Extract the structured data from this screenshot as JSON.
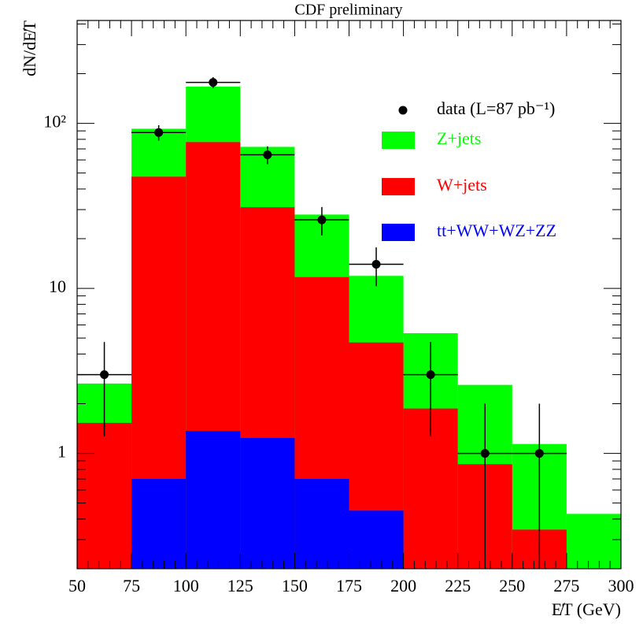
{
  "chart_data": {
    "type": "histogram",
    "title": "CDF preliminary",
    "xlabel": "E̸T (GeV)",
    "ylabel": "dN/dE̸T",
    "bins": [
      50,
      75,
      100,
      125,
      150,
      175,
      200,
      225,
      250,
      275,
      300
    ],
    "series": [
      {
        "name": "Z+jets",
        "color": "#00ff00",
        "values": [
          2.65,
          92.7,
          167,
          72,
          28,
          11.9,
          5.35,
          2.6,
          1.14,
          0.43
        ]
      },
      {
        "name": "W+jets",
        "color": "#ff0000",
        "values": [
          1.53,
          47.5,
          77,
          31,
          11.7,
          4.7,
          1.87,
          0.86,
          0.345,
          null
        ]
      },
      {
        "name": "tt+WW+WZ+ZZ",
        "color": "#0000ff",
        "values": [
          null,
          0.7,
          1.37,
          1.24,
          0.7,
          0.45,
          null,
          null,
          null,
          null
        ]
      }
    ],
    "data": {
      "name": "data (L=87 pb⁻¹)",
      "color": "#000000",
      "x": [
        62.5,
        87.5,
        112.5,
        137.5,
        162.5,
        187.5,
        212.5,
        237.5,
        262.5
      ],
      "values": [
        3,
        88,
        177,
        64.5,
        26,
        14,
        3,
        1,
        1
      ],
      "errors": [
        1.73,
        9.4,
        13.3,
        8,
        5.1,
        3.7,
        1.73,
        1,
        1
      ]
    },
    "xlim": [
      50,
      300
    ],
    "xticks": [
      50,
      75,
      100,
      125,
      150,
      175,
      200,
      225,
      250,
      275,
      300
    ],
    "xminorticks": [
      55,
      60,
      65,
      70,
      80,
      85,
      90,
      95,
      105,
      110,
      115,
      120,
      130,
      135,
      140,
      145,
      155,
      160,
      165,
      170,
      180,
      185,
      190,
      195,
      205,
      210,
      215,
      220,
      230,
      235,
      240,
      245,
      255,
      260,
      265,
      270,
      280,
      285,
      290,
      295
    ],
    "ylim": [
      0.2,
      420
    ],
    "ylog": true,
    "yticks": [
      1,
      10,
      {
        "value": 100,
        "label": "10²"
      }
    ],
    "yminorticks": [
      0.2,
      0.3,
      0.4,
      0.5,
      0.6,
      0.7,
      0.8,
      0.9,
      2,
      3,
      4,
      5,
      6,
      7,
      8,
      9,
      20,
      30,
      40,
      50,
      60,
      70,
      80,
      90,
      200,
      300,
      400
    ]
  }
}
